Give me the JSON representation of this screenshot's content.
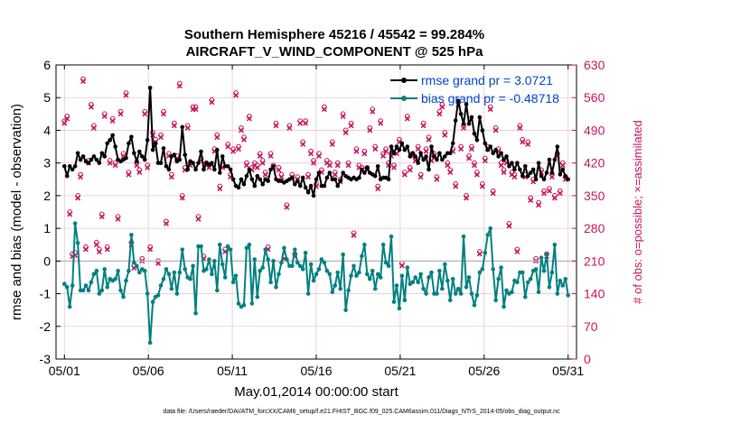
{
  "chart_data": {
    "type": "line",
    "title_line1": "Southern Hemisphere 45216 / 45542 = 99.284%",
    "title_line2": "AIRCRAFT_V_WIND_COMPONENT @ 525 hPa",
    "xlabel": "May.01,2014 00:00:00 start",
    "ylabel_left": "rmse and bias (model - observation)",
    "ylabel_right": "# of obs: o=possible; ×=assimilated",
    "footnote": "data file: /Users/raeder/DAI/ATM_forcXX/CAM6_setup/f.e21.FHIST_BGC.f09_025.CAM6assim.011/Diags_NTrS_2014-05/obs_diag_output.nc",
    "xlim": [
      0.5,
      31.5
    ],
    "ylim": [
      -3,
      6
    ],
    "ylim_right": [
      0,
      630
    ],
    "x_ticks": [
      1,
      6,
      11,
      16,
      21,
      26,
      31
    ],
    "x_tick_labels": [
      "05/01",
      "05/06",
      "05/11",
      "05/16",
      "05/21",
      "05/26",
      "05/31"
    ],
    "y_ticks": [
      -3,
      -2,
      -1,
      0,
      1,
      2,
      3,
      4,
      5,
      6
    ],
    "y_tick_labels": [
      "-3",
      "-2",
      "-1",
      "0",
      "1",
      "2",
      "3",
      "4",
      "5",
      "6"
    ],
    "y_right_ticks": [
      0,
      70,
      140,
      210,
      280,
      350,
      420,
      490,
      560,
      630
    ],
    "y_right_tick_labels": [
      "0",
      "70",
      "140",
      "210",
      "280",
      "350",
      "420",
      "490",
      "560",
      "630"
    ],
    "legend": {
      "placement": "top-right",
      "entries": [
        {
          "label": "rmse grand pr = 3.0721",
          "color": "#000000"
        },
        {
          "label": "bias grand pr = -0.48718",
          "color": "#008080"
        }
      ]
    },
    "colors": {
      "rmse": "#000000",
      "bias": "#0a7f7f",
      "obs": "#c8145a",
      "zero_line": "#bbbbbb",
      "grid": "#e6c8d2"
    },
    "series": [
      {
        "name": "rmse",
        "color": "#000000",
        "y": [
          2.9,
          2.6,
          2.9,
          2.8,
          2.9,
          3.3,
          3.1,
          3.2,
          3.05,
          3.0,
          3.1,
          3.2,
          3.1,
          3.0,
          3.3,
          3.2,
          3.6,
          3.7,
          3.85,
          3.5,
          3.1,
          3.05,
          3.1,
          3.15,
          3.6,
          3.8,
          3.3,
          3.05,
          3.35,
          3.2,
          3.1,
          3.7,
          5.3,
          3.4,
          3.6,
          3.0,
          3.0,
          3.45,
          2.9,
          2.8,
          3.2,
          3.25,
          3.05,
          3.1,
          4.1,
          3.25,
          2.8,
          3.05,
          3.0,
          2.8,
          3.0,
          3.35,
          2.8,
          3.0,
          2.95,
          3.0,
          2.8,
          3.4,
          2.7,
          3.2,
          2.9,
          2.9,
          2.8,
          2.5,
          2.3,
          2.25,
          2.5,
          2.35,
          2.6,
          2.8,
          2.5,
          2.3,
          2.6,
          2.5,
          2.35,
          2.5,
          2.45,
          2.8,
          2.9,
          2.5,
          2.45,
          2.45,
          2.4,
          2.45,
          2.5,
          2.55,
          2.35,
          2.45,
          2.3,
          2.55,
          2.25,
          2.1,
          2.3,
          2.0,
          2.5,
          2.7,
          2.3,
          2.3,
          2.55,
          2.7,
          2.5,
          2.5,
          2.3,
          2.45,
          2.7,
          2.6,
          2.55,
          2.5,
          2.55,
          2.5,
          2.55,
          2.8,
          2.7,
          2.85,
          2.7,
          2.65,
          2.6,
          2.9,
          2.5,
          2.55,
          2.55,
          2.5,
          3.5,
          3.3,
          3.5,
          3.4,
          3.6,
          3.4,
          3.5,
          3.2,
          3.3,
          3.2,
          3.0,
          3.3,
          3.1,
          3.2,
          2.8,
          3.5,
          3.2,
          3.1,
          3.3,
          3.1,
          3.2,
          3.3,
          3.3,
          3.6,
          4.3,
          4.9,
          4.5,
          4.2,
          4.8,
          4.2,
          4.4,
          3.9,
          3.7,
          4.4,
          4.0,
          3.6,
          3.4,
          3.5,
          3.3,
          3.4,
          3.2,
          3.3,
          3.1,
          3.2,
          2.9,
          3.0,
          2.8,
          3.0,
          2.8,
          2.6,
          2.9,
          2.6,
          2.7,
          2.8,
          2.5,
          3.0,
          2.6,
          2.5,
          2.7,
          3.1,
          2.7,
          3.1,
          3.5,
          2.65,
          2.8,
          2.6,
          2.5
        ]
      },
      {
        "name": "bias",
        "color": "#008080",
        "y": [
          -0.7,
          -0.8,
          -1.4,
          -0.75,
          1.15,
          0.55,
          -0.9,
          -0.9,
          -0.75,
          -0.9,
          -0.65,
          -0.4,
          -0.3,
          -1.0,
          -0.9,
          -0.25,
          -0.8,
          -0.55,
          -0.6,
          -0.55,
          -0.3,
          -0.9,
          -1.1,
          -0.6,
          -0.3,
          0.8,
          -0.05,
          -0.15,
          -0.35,
          -0.25,
          -0.3,
          -1.0,
          -2.5,
          -1.25,
          -1.1,
          -1.05,
          -0.75,
          -0.55,
          -0.25,
          -0.4,
          -0.85,
          -0.35,
          -1.0,
          -0.35,
          0.35,
          -0.25,
          -0.5,
          -0.55,
          -0.15,
          -1.6,
          0.45,
          0.45,
          -0.3,
          -0.25,
          0.05,
          -0.4,
          0.0,
          -0.9,
          0.5,
          -0.1,
          -0.5,
          0.45,
          0.35,
          -0.65,
          -0.45,
          -1.3,
          -1.4,
          -1.35,
          0.4,
          0.5,
          -1.3,
          0.05,
          -1.1,
          -0.3,
          -0.2,
          0.35,
          0.05,
          -0.65,
          0.0,
          -0.8,
          -0.4,
          -0.05,
          0.4,
          0.05,
          -0.15,
          -0.15,
          0.35,
          -0.05,
          -0.15,
          -0.25,
          0.25,
          -1.0,
          -0.1,
          -0.6,
          -0.4,
          -0.25,
          0.05,
          -0.05,
          -0.3,
          -0.4,
          -0.95,
          -0.75,
          -0.35,
          -0.85,
          0.2,
          -1.5,
          -0.9,
          -0.45,
          -0.15,
          -0.45,
          -0.35,
          0.15,
          0.5,
          -0.4,
          -0.55,
          -0.3,
          -0.85,
          -0.4,
          -0.5,
          0.5,
          -0.05,
          -0.15,
          0.75,
          -1.25,
          -0.75,
          -1.45,
          -0.45,
          -1.2,
          -0.2,
          -0.7,
          -0.65,
          -0.5,
          -0.65,
          -0.4,
          -0.85,
          -1.0,
          -0.5,
          -0.35,
          -1.0,
          -1.0,
          -0.3,
          -0.85,
          -0.1,
          -0.6,
          -1.2,
          -0.55,
          -1.0,
          -0.85,
          -1.0,
          0.75,
          -0.8,
          -0.5,
          -1.0,
          -1.35,
          -1.05,
          -0.35,
          -0.25,
          0.25,
          0.8,
          1.0,
          -0.25,
          -1.2,
          -0.55,
          -0.2,
          -1.4,
          -0.9,
          -1.0,
          -0.95,
          -0.6,
          -0.65,
          -0.35,
          -0.35,
          -1.1,
          -0.65,
          -0.55,
          -0.3,
          -0.25,
          -0.95,
          0.1,
          -0.3,
          0.2,
          -0.8,
          -0.35,
          0.5,
          -1.0,
          -0.6,
          -0.75,
          -0.55,
          -1.05
        ]
      },
      {
        "name": "possible",
        "marker": "o",
        "color": "#c8145a",
        "y": [
          510,
          520,
          315,
          225,
          228,
          350,
          395,
          600,
          240,
          425,
          545,
          500,
          250,
          235,
          310,
          525,
          240,
          425,
          515,
          420,
          305,
          530,
          440,
          570,
          400,
          250,
          200,
          420,
          405,
          215,
          530,
          415,
          240,
          485,
          470,
          210,
          480,
          530,
          295,
          440,
          395,
          505,
          435,
          590,
          350,
          410,
          500,
          420,
          540,
          540,
          305,
          430,
          220,
          420,
          415,
          555,
          450,
          480,
          370,
          415,
          235,
          460,
          395,
          450,
          570,
          455,
          495,
          475,
          420,
          520,
          410,
          420,
          415,
          440,
          425,
          400,
          240,
          440,
          415,
          505,
          410,
          395,
          220,
          330,
          500,
          395,
          225,
          390,
          510,
          465,
          510,
          395,
          445,
          425,
          375,
          440,
          405,
          540,
          425,
          420,
          465,
          400,
          420,
          385,
          525,
          490,
          420,
          505,
          270,
          450,
          415,
          410,
          445,
          410,
          495,
          535,
          455,
          370,
          510,
          440,
          450,
          420,
          440,
          415,
          445,
          470,
          205,
          400,
          520,
          410,
          440,
          430,
          455,
          395,
          505,
          450,
          475,
          430,
          440,
          390,
          530,
          545,
          485,
          420,
          405,
          450,
          375,
          550,
          455,
          500,
          350,
          435,
          455,
          420,
          400,
          230,
          375,
          430,
          455,
          540,
          360,
          495,
          450,
          420,
          405,
          425,
          290,
          400,
          395,
          235,
          500,
          470,
          395,
          465,
          345,
          385,
          215,
          335,
          405,
          360,
          225,
          365,
          395,
          350,
          440,
          360,
          420,
          390
        ]
      },
      {
        "name": "assimilated",
        "marker": "x",
        "color": "#c8145a",
        "y": [
          505,
          515,
          310,
          220,
          222,
          345,
          390,
          595,
          235,
          420,
          540,
          495,
          245,
          230,
          305,
          520,
          235,
          420,
          510,
          415,
          300,
          525,
          435,
          565,
          395,
          245,
          195,
          415,
          400,
          210,
          525,
          410,
          235,
          480,
          465,
          205,
          475,
          525,
          290,
          435,
          390,
          500,
          430,
          585,
          345,
          405,
          495,
          415,
          535,
          535,
          300,
          425,
          215,
          415,
          410,
          550,
          445,
          475,
          365,
          410,
          230,
          455,
          390,
          445,
          565,
          450,
          490,
          470,
          415,
          515,
          405,
          415,
          410,
          435,
          420,
          395,
          235,
          435,
          410,
          500,
          405,
          390,
          215,
          325,
          495,
          390,
          220,
          385,
          505,
          460,
          505,
          390,
          440,
          420,
          370,
          435,
          400,
          535,
          420,
          415,
          460,
          395,
          415,
          380,
          520,
          485,
          415,
          500,
          265,
          445,
          410,
          405,
          440,
          405,
          490,
          530,
          450,
          365,
          505,
          435,
          445,
          415,
          435,
          410,
          440,
          465,
          200,
          395,
          515,
          405,
          435,
          425,
          450,
          390,
          500,
          445,
          470,
          425,
          435,
          385,
          525,
          540,
          480,
          415,
          400,
          445,
          370,
          545,
          450,
          495,
          345,
          430,
          450,
          415,
          395,
          225,
          370,
          425,
          450,
          535,
          355,
          490,
          445,
          415,
          400,
          420,
          285,
          395,
          390,
          230,
          495,
          465,
          390,
          460,
          340,
          380,
          210,
          330,
          400,
          355,
          220,
          360,
          390,
          345,
          435,
          355,
          415,
          385
        ]
      }
    ]
  }
}
